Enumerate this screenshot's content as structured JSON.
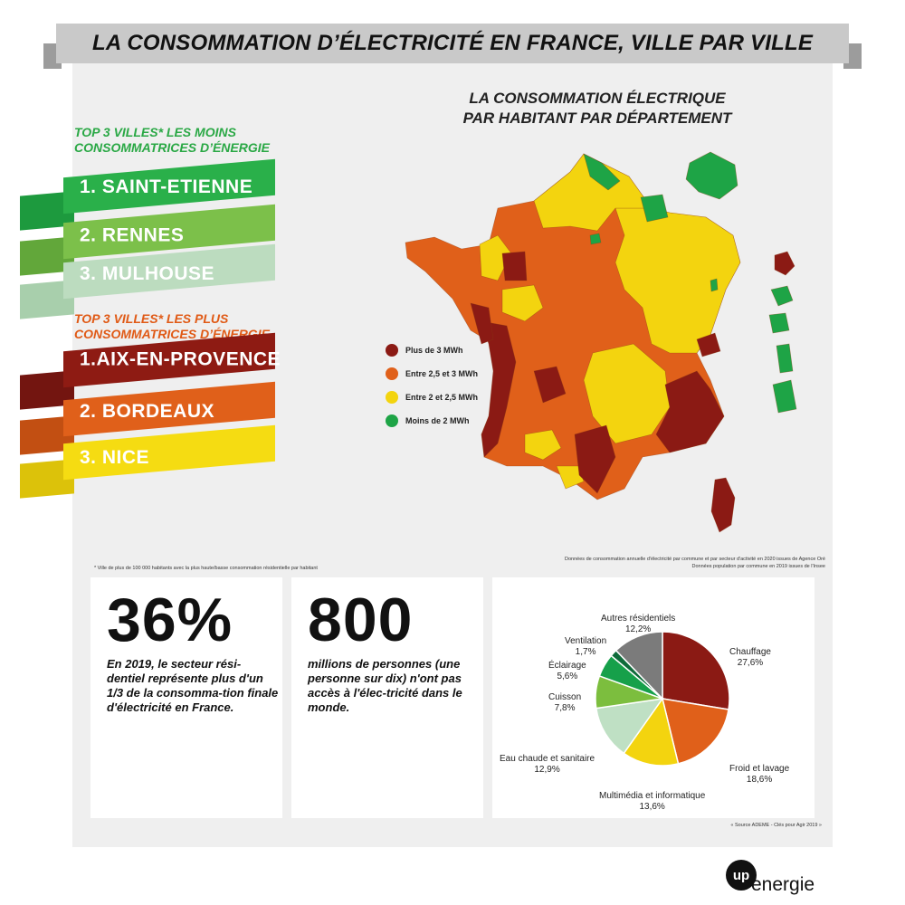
{
  "title": "LA CONSOMMATION D’ÉLECTRICITÉ EN FRANCE, VILLE PAR VILLE",
  "map": {
    "title_line1": "LA CONSOMMATION ÉLECTRIQUE",
    "title_line2": "PAR HABITANT PAR DÉPARTEMENT",
    "legend": [
      {
        "label": "Plus de 3 MWh",
        "color": "#8b1a14"
      },
      {
        "label": "Entre 2,5 et 3 MWh",
        "color": "#e0601a"
      },
      {
        "label": "Entre 2 et 2,5 MWh",
        "color": "#f3d40f"
      },
      {
        "label": "Moins de 2 MWh",
        "color": "#1ea446"
      }
    ]
  },
  "least": {
    "heading_line1": "TOP 3 VILLES* LES MOINS",
    "heading_line2": "CONSOMMATRICES D’ÉNERGIE",
    "heading_color": "#2aa845",
    "items": [
      {
        "label": "1. SAINT-ETIENNE",
        "color": "#2ab04a",
        "tail": "#1d9a3e"
      },
      {
        "label": "2. RENNES",
        "color": "#7cc04a",
        "tail": "#62a73a"
      },
      {
        "label": "3. MULHOUSE",
        "color": "#bcdcbf",
        "tail": "#a8cfac"
      }
    ]
  },
  "most": {
    "heading_line1": "TOP 3 VILLES* LES PLUS",
    "heading_line2": "CONSOMMATRICES D’ÉNERGIE",
    "heading_color": "#e05a16",
    "items": [
      {
        "label": "1.AIX-EN-PROVENCE",
        "color": "#8e1b13",
        "tail": "#731510"
      },
      {
        "label": "2. BORDEAUX",
        "color": "#e0601a",
        "tail": "#c24f12"
      },
      {
        "label": "3. NICE",
        "color": "#f5dc12",
        "tail": "#dcc20a"
      }
    ]
  },
  "note_left": "* Ville de plus de 100 000 habitants avec la plus haute/basse consommation résidentielle par habitant",
  "note_right_line1": "Données de consommation annuelle d'électricité par commune et par secteur d'activité en 2020 issues de Agence Oré",
  "note_right_line2": "Données population par commune en 2019 issues de l'Insee",
  "stat1": {
    "value": "36%",
    "text": "En 2019, le secteur rési-dentiel représente plus d'un 1/3 de la consomma-tion finale d'électricité en France."
  },
  "stat2": {
    "value": "800",
    "text": "millions de personnes (une personne sur dix) n'ont pas accès à l'élec-tricité dans le monde."
  },
  "source": "« Source ADEME - Clés pour Agir 2019 »",
  "logo": {
    "badge": "up",
    "word": "energie"
  },
  "chart_data": {
    "type": "pie",
    "unit": "%",
    "slices": [
      {
        "label": "Chauffage",
        "value": 27.6,
        "display": "27,6%",
        "color": "#8b1a14"
      },
      {
        "label": "Froid et lavage",
        "value": 18.6,
        "display": "18,6%",
        "color": "#e0601a"
      },
      {
        "label": "Multimédia et informatique",
        "value": 13.6,
        "display": "13,6%",
        "color": "#f3d40f"
      },
      {
        "label": "Eau chaude et sanitaire",
        "value": 12.9,
        "display": "12,9%",
        "color": "#bfe0c4"
      },
      {
        "label": "Cuisson",
        "value": 7.8,
        "display": "7,8%",
        "color": "#7cbe3e"
      },
      {
        "label": "Éclairage",
        "value": 5.6,
        "display": "5,6%",
        "color": "#16a04a"
      },
      {
        "label": "Ventilation",
        "value": 1.7,
        "display": "1,7%",
        "color": "#0e6b3a"
      },
      {
        "label": "Autres résidentiels",
        "value": 12.2,
        "display": "12,2%",
        "color": "#7b7b7b"
      }
    ]
  }
}
